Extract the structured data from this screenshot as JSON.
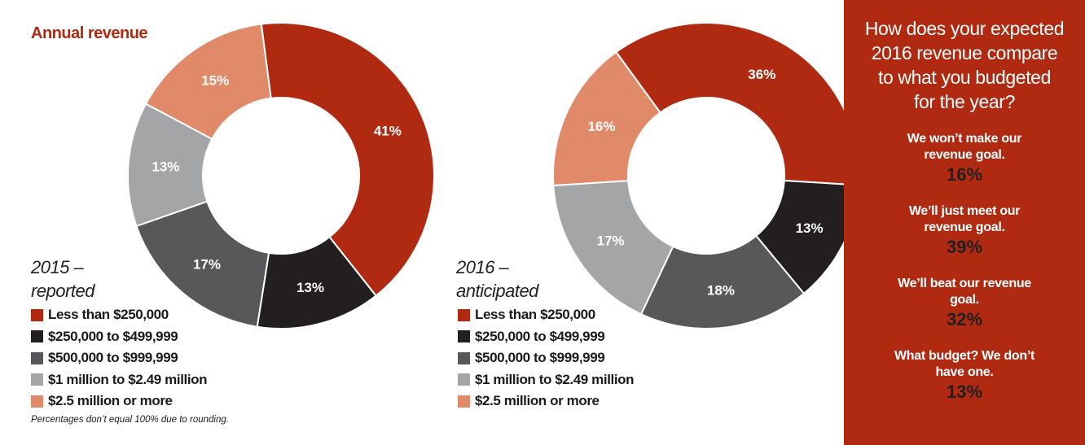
{
  "title": "Annual revenue",
  "footnote": "Percentages don’t equal 100% due to rounding.",
  "colors": {
    "accent": "#b02a12",
    "categories": [
      "#b02a12",
      "#231f20",
      "#58585a",
      "#a4a5a7",
      "#e08a6a"
    ]
  },
  "chart_data": [
    {
      "type": "pie",
      "variant": "donut",
      "label_line1": "2015 –",
      "label_line2": "reported",
      "categories": [
        "Less than $250,000",
        "$250,000 to $499,999",
        "$500,000 to $999,999",
        "$1 million to $2.49 million",
        "$2.5 million or more"
      ],
      "values": [
        41,
        13,
        17,
        13,
        15
      ],
      "data_labels": [
        "41%",
        "13%",
        "17%",
        "13%",
        "15%"
      ]
    },
    {
      "type": "pie",
      "variant": "donut",
      "label_line1": "2016 –",
      "label_line2": "anticipated",
      "categories": [
        "Less than $250,000",
        "$250,000 to $499,999",
        "$500,000 to $999,999",
        "$1 million to $2.49 million",
        "$2.5 million or more"
      ],
      "values": [
        36,
        13,
        18,
        17,
        16
      ],
      "data_labels": [
        "36%",
        "13%",
        "18%",
        "17%",
        "16%"
      ]
    }
  ],
  "side_panel": {
    "question_lines": [
      "How does your expected",
      "2016 revenue compare",
      "to what you budgeted",
      "for the year?"
    ],
    "answers": [
      {
        "text": "We won’t make our revenue goal.",
        "pct": "16%"
      },
      {
        "text": "We’ll just meet our revenue goal.",
        "pct": "39%"
      },
      {
        "text": "We’ll beat our revenue goal.",
        "pct": "32%"
      },
      {
        "text": "What budget? We don’t have one.",
        "pct": "13%"
      }
    ]
  }
}
